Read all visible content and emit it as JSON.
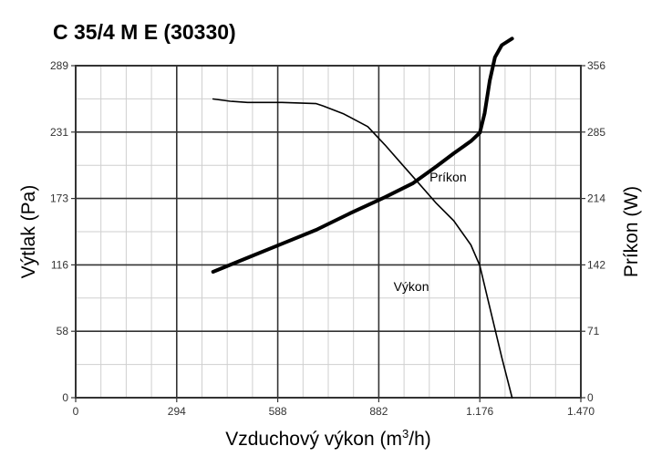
{
  "chart_data": {
    "type": "line",
    "title": "C 35/4 M E (30330)",
    "xlabel": "Vzduchový výkon (m",
    "xlabel_sup": "3",
    "xlabel_suffix": "/h)",
    "ylabel_left": "Výtlak (Pa)",
    "ylabel_right": "Príkon (W)",
    "xlim": [
      0,
      1470
    ],
    "ylim_left": [
      0,
      289
    ],
    "ylim_right": [
      0,
      356
    ],
    "x_ticks": [
      "0",
      "294",
      "588",
      "882",
      "1.176",
      "1.470"
    ],
    "y_ticks_left": [
      "0",
      "58",
      "116",
      "173",
      "231",
      "289"
    ],
    "y_ticks_right": [
      "0",
      "71",
      "142",
      "214",
      "285",
      "356"
    ],
    "grid": true,
    "series": [
      {
        "name": "Výkon",
        "axis": "left",
        "line_width": 1.6,
        "x": [
          400,
          450,
          500,
          600,
          700,
          720,
          780,
          850,
          900,
          950,
          1000,
          1050,
          1100,
          1150,
          1176,
          1200,
          1240,
          1270
        ],
        "y": [
          260,
          258,
          257,
          257,
          256,
          254,
          247,
          236,
          220,
          203,
          186,
          169,
          154,
          133,
          115,
          85,
          35,
          0
        ]
      },
      {
        "name": "Príkon",
        "axis": "right",
        "line_width": 4,
        "x": [
          400,
          500,
          600,
          700,
          800,
          900,
          982,
          1050,
          1100,
          1150,
          1176,
          1190,
          1205,
          1220,
          1240,
          1270
        ],
        "y": [
          135,
          150,
          165,
          180,
          198,
          215,
          230,
          248,
          262,
          275,
          284,
          305,
          340,
          365,
          378,
          385
        ]
      }
    ],
    "annotations": [
      {
        "text": "Príkon",
        "x": 1030,
        "y": 192
      },
      {
        "text": "Výkon",
        "x": 925,
        "y": 97
      }
    ]
  }
}
